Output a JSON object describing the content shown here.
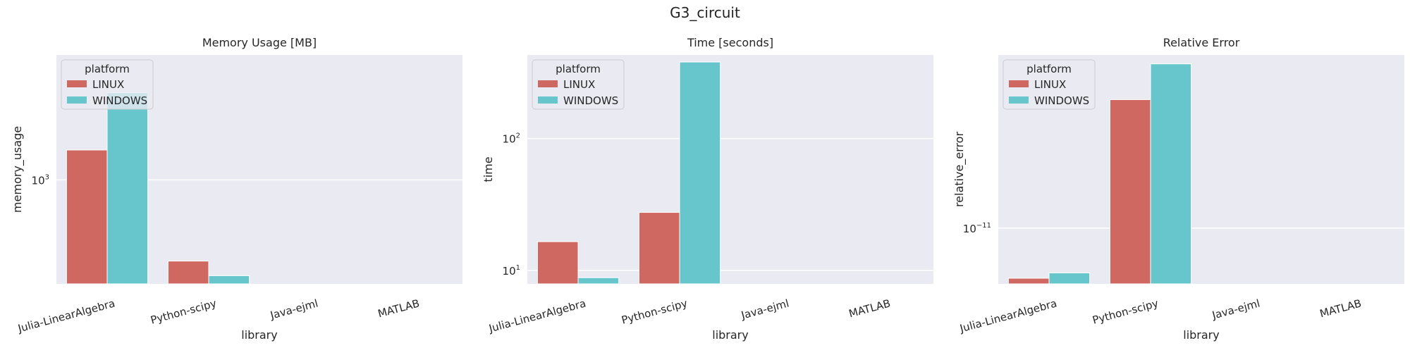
{
  "figure": {
    "title": "G3_circuit"
  },
  "colors": {
    "LINUX": "#cf6860",
    "WINDOWS": "#67c6cc",
    "panel_bg": "#eaeaf2",
    "grid": "#ffffff"
  },
  "chart_data": [
    {
      "type": "bar",
      "title": "Memory Usage [MB]",
      "xlabel": "library",
      "ylabel": "memory_usage",
      "yscale": "log",
      "ylim": [
        370,
        3300
      ],
      "yticks": [
        {
          "value": 1000,
          "base": "10",
          "exp": "3"
        }
      ],
      "grid": true,
      "legend": {
        "title": "platform",
        "placement": "upper-left",
        "entries": [
          "LINUX",
          "WINDOWS"
        ]
      },
      "categories": [
        "Julia-LinearAlgebra",
        "Python-scipy",
        "Java-ejml",
        "MATLAB"
      ],
      "series": [
        {
          "name": "LINUX",
          "values": [
            1330,
            460,
            null,
            null
          ]
        },
        {
          "name": "WINDOWS",
          "values": [
            2300,
            400,
            null,
            null
          ]
        }
      ]
    },
    {
      "type": "bar",
      "title": "Time [seconds]",
      "xlabel": "library",
      "ylabel": "time",
      "yscale": "log",
      "ylim": [
        7.9,
        430
      ],
      "yticks": [
        {
          "value": 10,
          "base": "10",
          "exp": "1"
        },
        {
          "value": 100,
          "base": "10",
          "exp": "2"
        }
      ],
      "grid": true,
      "legend": {
        "title": "platform",
        "placement": "upper-left",
        "entries": [
          "LINUX",
          "WINDOWS"
        ]
      },
      "categories": [
        "Julia-LinearAlgebra",
        "Python-scipy",
        "Java-ejml",
        "MATLAB"
      ],
      "series": [
        {
          "name": "LINUX",
          "values": [
            16.5,
            27.5,
            null,
            null
          ]
        },
        {
          "name": "WINDOWS",
          "values": [
            8.8,
            380,
            null,
            null
          ]
        }
      ]
    },
    {
      "type": "bar",
      "title": "Relative Error",
      "xlabel": "library",
      "ylabel": "relative_error",
      "yscale": "log",
      "ylim": [
        6.3e-12,
        4.2e-11
      ],
      "yticks": [
        {
          "value": 1e-11,
          "base": "10",
          "exp": "−11"
        }
      ],
      "grid": true,
      "legend": {
        "title": "platform",
        "placement": "upper-left",
        "entries": [
          "LINUX",
          "WINDOWS"
        ]
      },
      "categories": [
        "Julia-LinearAlgebra",
        "Python-scipy",
        "Java-ejml",
        "MATLAB"
      ],
      "series": [
        {
          "name": "LINUX",
          "values": [
            6.6e-12,
            2.9e-11,
            null,
            null
          ]
        },
        {
          "name": "WINDOWS",
          "values": [
            6.9e-12,
            3.9e-11,
            null,
            null
          ]
        }
      ]
    }
  ]
}
